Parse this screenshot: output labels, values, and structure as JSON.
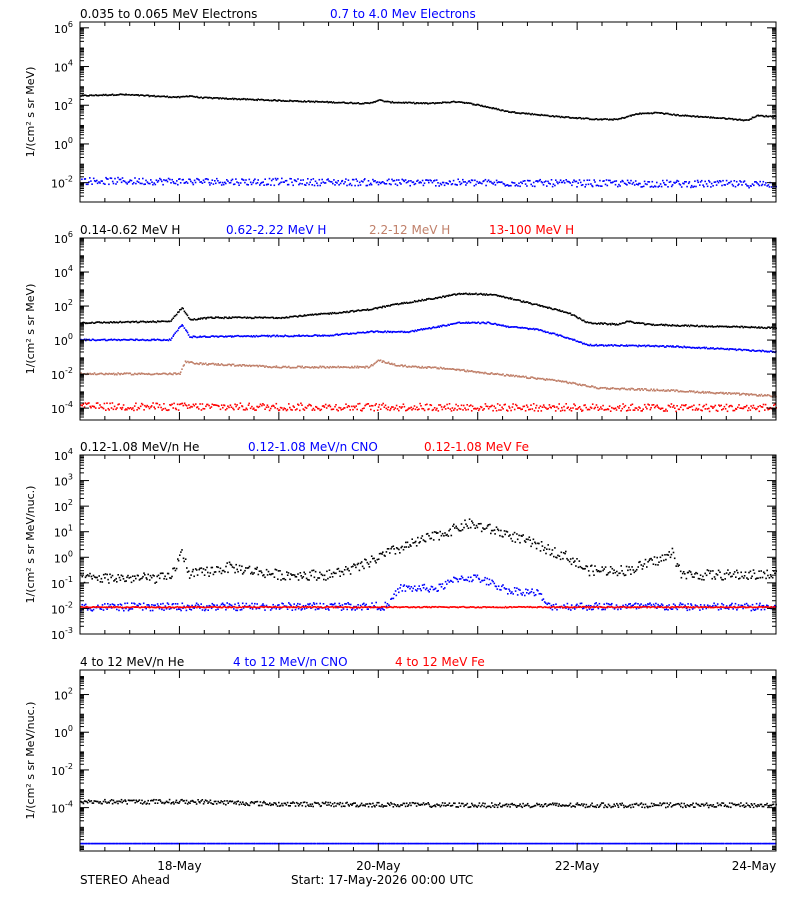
{
  "colors": {
    "black": "#000000",
    "blue": "#0000ff",
    "tan": "#c0806a",
    "red": "#ff0000"
  },
  "footer": {
    "left": "STEREO Ahead",
    "center": "Start: 17-May-2026 00:00 UTC"
  },
  "chart_data": [
    {
      "type": "scatter",
      "log_y": true,
      "ylabel": "1/(cm² s sr MeV)",
      "ylim": [
        0.001,
        2000000
      ],
      "y_ticks": [
        {
          "v": 0.01,
          "t": "10",
          "e": "-2"
        },
        {
          "v": 1,
          "t": "10",
          "e": "0"
        },
        {
          "v": 100,
          "t": "10",
          "e": "2"
        },
        {
          "v": 10000,
          "t": "10",
          "e": "4"
        },
        {
          "v": 1000000,
          "t": "10",
          "e": "6"
        }
      ],
      "xlim": [
        0,
        7
      ],
      "x_ticks": [
        {
          "v": 1,
          "label": "18-May"
        },
        {
          "v": 3,
          "label": "20-May"
        },
        {
          "v": 5,
          "label": "22-May"
        },
        {
          "v": 7,
          "label": "24-May"
        }
      ],
      "series": [
        {
          "name": "0.035 to 0.065 MeV Electrons",
          "color": "#000000",
          "noise": 0.03,
          "points": [
            [
              0,
              300
            ],
            [
              0.4,
              350
            ],
            [
              1.0,
              250
            ],
            [
              1.1,
              300
            ],
            [
              1.2,
              240
            ],
            [
              2.0,
              170
            ],
            [
              2.9,
              120
            ],
            [
              3.0,
              180
            ],
            [
              3.1,
              140
            ],
            [
              3.5,
              120
            ],
            [
              3.8,
              150
            ],
            [
              4.0,
              100
            ],
            [
              4.3,
              45
            ],
            [
              4.8,
              25
            ],
            [
              5.2,
              18
            ],
            [
              5.4,
              18
            ],
            [
              5.6,
              35
            ],
            [
              5.8,
              40
            ],
            [
              6.0,
              30
            ],
            [
              6.5,
              20
            ],
            [
              6.7,
              16
            ],
            [
              6.8,
              28
            ],
            [
              7.0,
              25
            ]
          ]
        },
        {
          "name": "0.7 to 4.0 Mev Electrons",
          "color": "#0000ff",
          "noise": 0.18,
          "points": [
            [
              0,
              0.012
            ],
            [
              7,
              0.008
            ]
          ]
        }
      ]
    },
    {
      "type": "scatter",
      "log_y": true,
      "ylabel": "1/(cm² s sr MeV)",
      "ylim": [
        2e-05,
        1000000
      ],
      "y_ticks": [
        {
          "v": 0.0001,
          "t": "10",
          "e": "-4"
        },
        {
          "v": 0.01,
          "t": "10",
          "e": "-2"
        },
        {
          "v": 1,
          "t": "10",
          "e": "0"
        },
        {
          "v": 100,
          "t": "10",
          "e": "2"
        },
        {
          "v": 10000,
          "t": "10",
          "e": "4"
        },
        {
          "v": 1000000,
          "t": "10",
          "e": "6"
        }
      ],
      "xlim": [
        0,
        7
      ],
      "x_ticks": [
        {
          "v": 1,
          "label": "18-May"
        },
        {
          "v": 3,
          "label": "20-May"
        },
        {
          "v": 5,
          "label": "22-May"
        },
        {
          "v": 7,
          "label": "24-May"
        }
      ],
      "series": [
        {
          "name": "0.14-0.62 MeV H",
          "color": "#000000",
          "noise": 0.04,
          "points": [
            [
              0,
              10
            ],
            [
              0.9,
              12
            ],
            [
              1.02,
              80
            ],
            [
              1.1,
              15
            ],
            [
              1.3,
              20
            ],
            [
              2.0,
              20
            ],
            [
              2.6,
              40
            ],
            [
              2.9,
              60
            ],
            [
              3.2,
              130
            ],
            [
              3.6,
              300
            ],
            [
              3.8,
              500
            ],
            [
              4.0,
              500
            ],
            [
              4.2,
              400
            ],
            [
              4.5,
              150
            ],
            [
              4.9,
              40
            ],
            [
              5.1,
              10
            ],
            [
              5.4,
              8
            ],
            [
              5.5,
              12
            ],
            [
              5.7,
              8
            ],
            [
              6.0,
              7
            ],
            [
              7.0,
              5
            ]
          ]
        },
        {
          "name": "0.62-2.22 MeV H",
          "color": "#0000ff",
          "noise": 0.04,
          "points": [
            [
              0,
              1.0
            ],
            [
              0.9,
              1.0
            ],
            [
              1.02,
              8
            ],
            [
              1.1,
              1.5
            ],
            [
              1.5,
              1.6
            ],
            [
              2.5,
              1.8
            ],
            [
              2.9,
              3
            ],
            [
              3.3,
              3
            ],
            [
              3.6,
              6
            ],
            [
              3.8,
              10
            ],
            [
              4.1,
              10
            ],
            [
              4.3,
              6
            ],
            [
              4.6,
              4
            ],
            [
              4.9,
              1.3
            ],
            [
              5.1,
              0.5
            ],
            [
              6.0,
              0.4
            ],
            [
              7.0,
              0.2
            ]
          ]
        },
        {
          "name": "2.2-12 MeV H",
          "color": "#c0806a",
          "noise": 0.05,
          "points": [
            [
              0,
              0.01
            ],
            [
              1.0,
              0.01
            ],
            [
              1.05,
              0.05
            ],
            [
              1.2,
              0.04
            ],
            [
              2.0,
              0.025
            ],
            [
              2.9,
              0.025
            ],
            [
              3.0,
              0.06
            ],
            [
              3.2,
              0.03
            ],
            [
              3.7,
              0.02
            ],
            [
              4.3,
              0.008
            ],
            [
              4.8,
              0.004
            ],
            [
              5.2,
              0.0015
            ],
            [
              6.0,
              0.001
            ],
            [
              7.0,
              0.0005
            ]
          ]
        },
        {
          "name": "13-100 MeV H",
          "color": "#ff0000",
          "noise": 0.22,
          "points": [
            [
              0,
              0.00012
            ],
            [
              7,
              0.0001
            ]
          ]
        }
      ]
    },
    {
      "type": "scatter",
      "log_y": true,
      "ylabel": "1/(cm² s sr MeV/nuc.)",
      "ylim": [
        0.001,
        10000
      ],
      "y_ticks": [
        {
          "v": 0.001,
          "t": "10",
          "e": "-3"
        },
        {
          "v": 0.01,
          "t": "10",
          "e": "-2"
        },
        {
          "v": 0.1,
          "t": "10",
          "e": "-1"
        },
        {
          "v": 1,
          "t": "10",
          "e": "0"
        },
        {
          "v": 10,
          "t": "10",
          "e": "1"
        },
        {
          "v": 100,
          "t": "10",
          "e": "2"
        },
        {
          "v": 1000,
          "t": "10",
          "e": "3"
        },
        {
          "v": 10000,
          "t": "10",
          "e": "4"
        }
      ],
      "xlim": [
        0,
        7
      ],
      "x_ticks": [
        {
          "v": 1,
          "label": "18-May"
        },
        {
          "v": 3,
          "label": "20-May"
        },
        {
          "v": 5,
          "label": "22-May"
        },
        {
          "v": 7,
          "label": "24-May"
        }
      ],
      "series": [
        {
          "name": "0.12-1.08 MeV/n He",
          "color": "#000000",
          "noise": 0.2,
          "points": [
            [
              0,
              0.15
            ],
            [
              0.9,
              0.15
            ],
            [
              1.02,
              1.5
            ],
            [
              1.1,
              0.2
            ],
            [
              1.5,
              0.4
            ],
            [
              2.0,
              0.2
            ],
            [
              2.5,
              0.2
            ],
            [
              2.8,
              0.4
            ],
            [
              3.1,
              1.5
            ],
            [
              3.4,
              4
            ],
            [
              3.7,
              10
            ],
            [
              3.9,
              20
            ],
            [
              4.2,
              10
            ],
            [
              4.5,
              4
            ],
            [
              4.9,
              1
            ],
            [
              5.1,
              0.3
            ],
            [
              5.5,
              0.3
            ],
            [
              5.9,
              1
            ],
            [
              5.95,
              1.5
            ],
            [
              6.05,
              0.2
            ],
            [
              7.0,
              0.2
            ]
          ]
        },
        {
          "name": "0.12-1.08 MeV/n CNO",
          "color": "#0000ff",
          "noise": 0.15,
          "points": [
            [
              0,
              0.011
            ],
            [
              3.1,
              0.012
            ],
            [
              3.2,
              0.06
            ],
            [
              3.6,
              0.06
            ],
            [
              3.8,
              0.15
            ],
            [
              4.0,
              0.15
            ],
            [
              4.3,
              0.05
            ],
            [
              4.6,
              0.04
            ],
            [
              4.7,
              0.012
            ],
            [
              7.0,
              0.011
            ]
          ]
        },
        {
          "name": "0.12-1.08 MeV Fe",
          "color": "#ff0000",
          "noise": 0.02,
          "points": [
            [
              0,
              0.011
            ],
            [
              7,
              0.011
            ]
          ]
        }
      ]
    },
    {
      "type": "scatter",
      "log_y": true,
      "ylabel": "1/(cm² s sr MeV/nuc.)",
      "ylim": [
        5e-07,
        2000
      ],
      "y_ticks": [
        {
          "v": 0.0001,
          "t": "10",
          "e": "-4"
        },
        {
          "v": 0.01,
          "t": "10",
          "e": "-2"
        },
        {
          "v": 1,
          "t": "10",
          "e": "0"
        },
        {
          "v": 100,
          "t": "10",
          "e": "2"
        }
      ],
      "xlim": [
        0,
        7
      ],
      "x_ticks": [
        {
          "v": 1,
          "label": "18-May"
        },
        {
          "v": 3,
          "label": "20-May"
        },
        {
          "v": 5,
          "label": "22-May"
        },
        {
          "v": 7,
          "label": "24-May"
        }
      ],
      "series": [
        {
          "name": "4 to 12 MeV/n He",
          "color": "#000000",
          "noise": 0.12,
          "points": [
            [
              0,
              0.0002
            ],
            [
              1.2,
              0.0002
            ],
            [
              2.0,
              0.00015
            ],
            [
              4.0,
              0.00013
            ],
            [
              7.0,
              0.00013
            ]
          ]
        },
        {
          "name": "4 to 12 MeV/n CNO",
          "color": "#0000ff",
          "noise": 0.0,
          "points": [
            [
              0,
              1.2e-06
            ],
            [
              7,
              1.2e-06
            ]
          ]
        },
        {
          "name": "4 to 12 MeV Fe",
          "color": "#ff0000",
          "noise": 0.0,
          "points": []
        }
      ]
    }
  ]
}
